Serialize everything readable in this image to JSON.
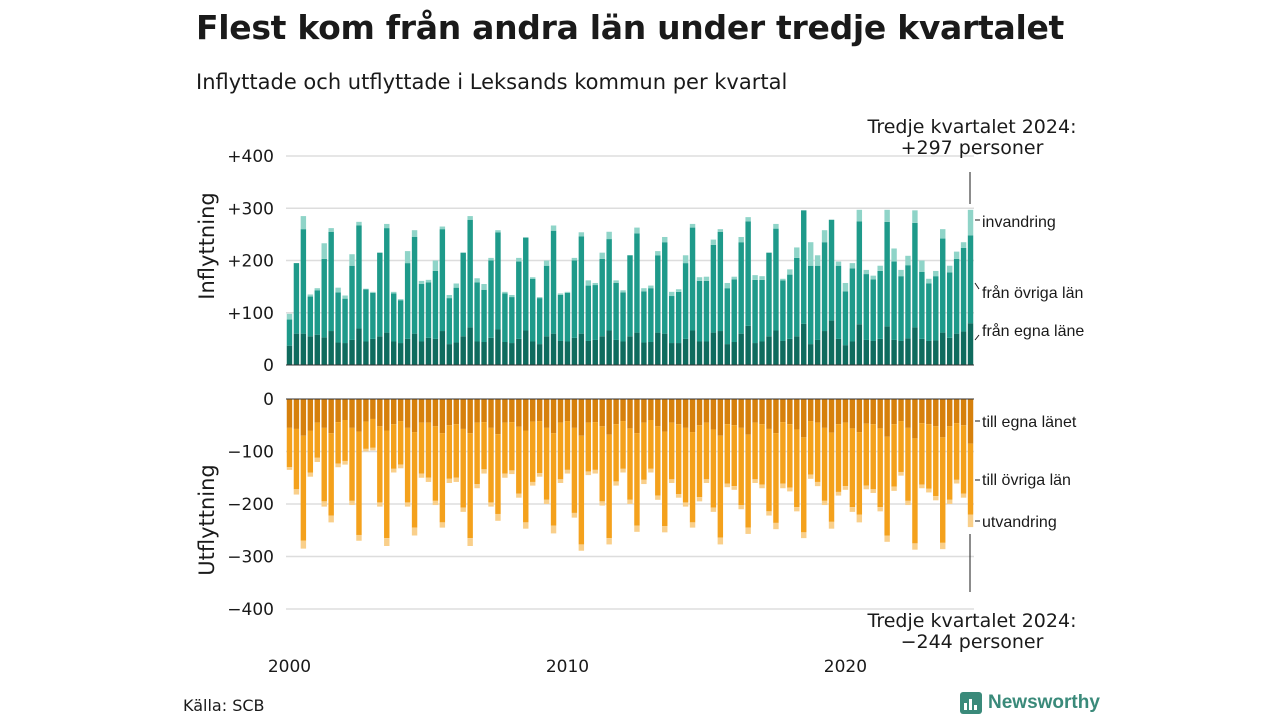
{
  "title": "Flest kom från andra län under tredje kvartalet",
  "subtitle": "Inflyttade och utflyttade i Leksands kommun per kvartal",
  "source": "Källa: SCB",
  "brand": "Newsworthy",
  "annotation_top": {
    "line1": "Tredje kvartalet 2024:",
    "line2": "+297 personer"
  },
  "annotation_bottom": {
    "line1": "Tredje kvartalet 2024:",
    "line2": "−244 personer"
  },
  "colors": {
    "in_own_county": "#0f6b5e",
    "in_other_counties": "#1e9a8a",
    "immigration": "#8fd4c8",
    "out_own_county": "#d6800c",
    "out_other_counties": "#f4a11c",
    "emigration": "#f9cf8a",
    "brand": "#3a8a7a"
  },
  "chart_data": {
    "type": "bar",
    "stacked": true,
    "x_axis": {
      "ticks": [
        "2000",
        "2010",
        "2020"
      ]
    },
    "panels": [
      {
        "ylabel": "Inflyttning",
        "ylim": [
          0,
          400
        ],
        "yticks": [
          "+400",
          "+300",
          "+200",
          "+100",
          "0"
        ],
        "series_labels": [
          "invandring",
          "från övriga län",
          "från egna läne"
        ]
      },
      {
        "ylabel": "Utflyttning",
        "ylim": [
          -400,
          0
        ],
        "yticks": [
          "0",
          "−100",
          "−200",
          "−300",
          "−400"
        ],
        "series_labels": [
          "till egna länet",
          "till övriga län",
          "utvandring"
        ]
      }
    ],
    "quarters_start": "2000 Q1",
    "quarters_end": "2024 Q3",
    "total_in": [
      98,
      190,
      285,
      135,
      147,
      233,
      262,
      148,
      133,
      212,
      274,
      146,
      140,
      213,
      270,
      140,
      126,
      218,
      258,
      161,
      163,
      200,
      265,
      134,
      156,
      215,
      285,
      166,
      155,
      205,
      258,
      140,
      134,
      205,
      244,
      168,
      130,
      200,
      267,
      137,
      140,
      205,
      254,
      162,
      157,
      215,
      255,
      162,
      143,
      210,
      263,
      147,
      152,
      218,
      245,
      140,
      145,
      210,
      270,
      168,
      169,
      240,
      260,
      157,
      169,
      245,
      283,
      172,
      170,
      215,
      270,
      165,
      183,
      225,
      296,
      235,
      210,
      258,
      278,
      198,
      157,
      195,
      297,
      182,
      171,
      190,
      297,
      223,
      182,
      209,
      296,
      200,
      165,
      180,
      260,
      190,
      217,
      235,
      297
    ],
    "in_own_county": [
      37,
      60,
      60,
      55,
      58,
      53,
      65,
      43,
      42,
      48,
      70,
      45,
      50,
      55,
      62,
      45,
      42,
      50,
      60,
      45,
      52,
      50,
      65,
      40,
      43,
      55,
      72,
      45,
      44,
      52,
      68,
      44,
      42,
      50,
      66,
      45,
      40,
      55,
      60,
      46,
      45,
      52,
      60,
      46,
      48,
      55,
      66,
      48,
      45,
      55,
      62,
      43,
      44,
      62,
      60,
      42,
      42,
      50,
      66,
      45,
      45,
      62,
      65,
      40,
      44,
      60,
      75,
      42,
      45,
      55,
      66,
      46,
      50,
      55,
      79,
      40,
      48,
      65,
      85,
      50,
      38,
      45,
      78,
      48,
      46,
      50,
      74,
      48,
      46,
      51,
      72,
      50,
      46,
      47,
      62,
      52,
      60,
      64,
      80
    ],
    "in_other_counties": [
      50,
      135,
      200,
      76,
      85,
      150,
      190,
      96,
      85,
      142,
      197,
      100,
      88,
      160,
      200,
      92,
      82,
      145,
      185,
      110,
      106,
      130,
      195,
      88,
      105,
      160,
      206,
      113,
      100,
      148,
      186,
      93,
      88,
      148,
      178,
      120,
      88,
      135,
      197,
      88,
      93,
      148,
      186,
      106,
      105,
      148,
      175,
      109,
      94,
      155,
      190,
      98,
      103,
      148,
      175,
      90,
      98,
      145,
      197,
      116,
      116,
      168,
      190,
      107,
      120,
      175,
      200,
      121,
      118,
      160,
      195,
      116,
      123,
      150,
      217,
      150,
      142,
      170,
      193,
      140,
      103,
      140,
      197,
      126,
      118,
      130,
      200,
      150,
      124,
      140,
      200,
      128,
      110,
      123,
      180,
      125,
      143,
      160,
      168
    ],
    "total_out": [
      -135,
      -182,
      -285,
      -148,
      -120,
      -205,
      -235,
      -130,
      -125,
      -202,
      -270,
      -100,
      -98,
      -205,
      -280,
      -140,
      -132,
      -205,
      -260,
      -150,
      -158,
      -202,
      -245,
      -160,
      -158,
      -215,
      -280,
      -170,
      -142,
      -205,
      -232,
      -150,
      -143,
      -188,
      -247,
      -165,
      -148,
      -200,
      -256,
      -160,
      -142,
      -226,
      -289,
      -145,
      -142,
      -203,
      -277,
      -165,
      -140,
      -200,
      -253,
      -162,
      -140,
      -192,
      -254,
      -160,
      -188,
      -205,
      -245,
      -195,
      -160,
      -215,
      -277,
      -168,
      -173,
      -210,
      -257,
      -160,
      -170,
      -222,
      -248,
      -170,
      -176,
      -214,
      -265,
      -152,
      -166,
      -202,
      -247,
      -184,
      -173,
      -215,
      -235,
      -172,
      -179,
      -214,
      -272,
      -175,
      -146,
      -202,
      -287,
      -170,
      -178,
      -193,
      -286,
      -200,
      -161,
      -188,
      -244
    ],
    "out_own_county": [
      -55,
      -57,
      -70,
      -60,
      -45,
      -55,
      -65,
      -44,
      -40,
      -55,
      -62,
      -43,
      -38,
      -52,
      -60,
      -48,
      -42,
      -55,
      -63,
      -45,
      -45,
      -52,
      -65,
      -50,
      -48,
      -57,
      -65,
      -45,
      -44,
      -55,
      -67,
      -45,
      -44,
      -53,
      -60,
      -43,
      -42,
      -55,
      -65,
      -45,
      -42,
      -55,
      -70,
      -45,
      -44,
      -52,
      -68,
      -48,
      -42,
      -56,
      -65,
      -45,
      -40,
      -52,
      -62,
      -45,
      -48,
      -55,
      -63,
      -50,
      -45,
      -58,
      -70,
      -48,
      -50,
      -55,
      -68,
      -45,
      -48,
      -57,
      -65,
      -44,
      -48,
      -58,
      -73,
      -42,
      -45,
      -55,
      -64,
      -48,
      -45,
      -56,
      -63,
      -47,
      -48,
      -56,
      -72,
      -48,
      -42,
      -55,
      -75,
      -46,
      -48,
      -52,
      -73,
      -52,
      -46,
      -50,
      -85
    ],
    "out_other_counties": [
      -75,
      -115,
      -200,
      -80,
      -67,
      -140,
      -157,
      -79,
      -78,
      -139,
      -197,
      -52,
      -55,
      -145,
      -205,
      -85,
      -83,
      -142,
      -182,
      -97,
      -105,
      -142,
      -170,
      -102,
      -102,
      -150,
      -200,
      -117,
      -90,
      -142,
      -152,
      -97,
      -92,
      -127,
      -175,
      -115,
      -99,
      -137,
      -176,
      -108,
      -93,
      -162,
      -207,
      -93,
      -91,
      -143,
      -197,
      -109,
      -91,
      -136,
      -176,
      -109,
      -93,
      -132,
      -180,
      -108,
      -133,
      -142,
      -172,
      -137,
      -108,
      -149,
      -194,
      -113,
      -116,
      -147,
      -177,
      -108,
      -115,
      -157,
      -171,
      -117,
      -121,
      -148,
      -181,
      -102,
      -113,
      -139,
      -170,
      -129,
      -121,
      -150,
      -157,
      -118,
      -124,
      -150,
      -188,
      -119,
      -97,
      -139,
      -200,
      -117,
      -123,
      -133,
      -201,
      -140,
      -108,
      -130,
      -135
    ]
  }
}
